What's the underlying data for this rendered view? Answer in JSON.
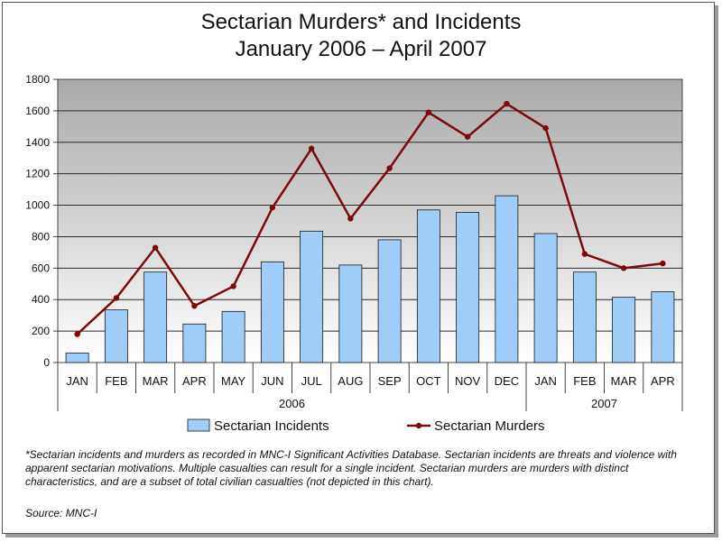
{
  "title_line1": "Sectarian Murders* and Incidents",
  "title_line2": "January 2006 – April 2007",
  "footnote": "*Sectarian incidents and murders as recorded in MNC-I Significant Activities Database.  Sectarian incidents are threats and violence with apparent sectarian motivations.  Multiple casualties can result for a single incident. Sectarian murders are murders with distinct characteristics, and are a subset of total civilian casualties (not depicted in this chart).",
  "source": "Source: MNC-I",
  "colors": {
    "bar_fill": "#9fcdf7",
    "bar_stroke": "#1a1a1a",
    "line": "#7b0a0a",
    "plot_top": "#a9a9a9",
    "plot_bottom": "#ffffff"
  },
  "chart_data": {
    "type": "bar",
    "categories": [
      "JAN",
      "FEB",
      "MAR",
      "APR",
      "MAY",
      "JUN",
      "JUL",
      "AUG",
      "SEP",
      "OCT",
      "NOV",
      "DEC",
      "JAN",
      "FEB",
      "MAR",
      "APR"
    ],
    "groups": [
      {
        "label": "2006",
        "count": 12
      },
      {
        "label": "2007",
        "count": 4
      }
    ],
    "series": [
      {
        "name": "Sectarian Incidents",
        "type": "bar",
        "values": [
          60,
          335,
          575,
          245,
          325,
          640,
          835,
          620,
          780,
          970,
          955,
          1060,
          820,
          575,
          415,
          450
        ]
      },
      {
        "name": "Sectarian Murders",
        "type": "line",
        "values": [
          180,
          410,
          730,
          360,
          485,
          985,
          1360,
          915,
          1235,
          1590,
          1435,
          1645,
          1490,
          690,
          600,
          630
        ]
      }
    ],
    "ylim": [
      0,
      1800
    ],
    "yticks": [
      0,
      200,
      400,
      600,
      800,
      1000,
      1200,
      1400,
      1600,
      1800
    ],
    "grid": true,
    "legend": "bottom"
  }
}
